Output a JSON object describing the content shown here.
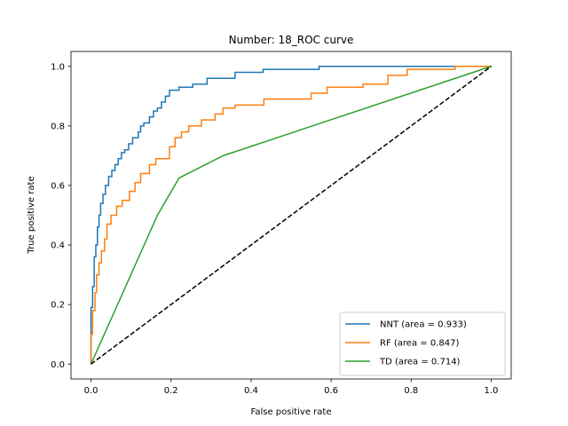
{
  "chart_data": {
    "type": "line",
    "title": "Number: 18_ROC curve",
    "xlabel": "False positive rate",
    "ylabel": "True positive rate",
    "xlim": [
      -0.05,
      1.05
    ],
    "ylim": [
      -0.05,
      1.05
    ],
    "xticks": [
      0.0,
      0.2,
      0.4,
      0.6,
      0.8,
      1.0
    ],
    "yticks": [
      0.0,
      0.2,
      0.4,
      0.6,
      0.8,
      1.0
    ],
    "xtick_labels": [
      "0.0",
      "0.2",
      "0.4",
      "0.6",
      "0.8",
      "1.0"
    ],
    "ytick_labels": [
      "0.0",
      "0.2",
      "0.4",
      "0.6",
      "0.8",
      "1.0"
    ],
    "grid": false,
    "legend_position": "lower-right",
    "series": [
      {
        "name": "NNT (area = 0.933)",
        "color": "#1f77b4",
        "step": true,
        "points": [
          [
            0.0,
            0.0
          ],
          [
            0.0,
            0.19
          ],
          [
            0.004,
            0.19
          ],
          [
            0.004,
            0.26
          ],
          [
            0.008,
            0.26
          ],
          [
            0.008,
            0.36
          ],
          [
            0.012,
            0.36
          ],
          [
            0.012,
            0.4
          ],
          [
            0.016,
            0.4
          ],
          [
            0.016,
            0.46
          ],
          [
            0.02,
            0.46
          ],
          [
            0.02,
            0.5
          ],
          [
            0.024,
            0.5
          ],
          [
            0.024,
            0.54
          ],
          [
            0.03,
            0.54
          ],
          [
            0.03,
            0.57
          ],
          [
            0.036,
            0.57
          ],
          [
            0.036,
            0.6
          ],
          [
            0.044,
            0.6
          ],
          [
            0.044,
            0.63
          ],
          [
            0.052,
            0.63
          ],
          [
            0.052,
            0.65
          ],
          [
            0.06,
            0.65
          ],
          [
            0.06,
            0.67
          ],
          [
            0.068,
            0.67
          ],
          [
            0.068,
            0.69
          ],
          [
            0.076,
            0.69
          ],
          [
            0.076,
            0.71
          ],
          [
            0.084,
            0.71
          ],
          [
            0.084,
            0.72
          ],
          [
            0.094,
            0.72
          ],
          [
            0.094,
            0.74
          ],
          [
            0.104,
            0.74
          ],
          [
            0.104,
            0.76
          ],
          [
            0.118,
            0.76
          ],
          [
            0.118,
            0.78
          ],
          [
            0.124,
            0.78
          ],
          [
            0.124,
            0.8
          ],
          [
            0.132,
            0.8
          ],
          [
            0.132,
            0.81
          ],
          [
            0.146,
            0.81
          ],
          [
            0.146,
            0.83
          ],
          [
            0.156,
            0.83
          ],
          [
            0.156,
            0.85
          ],
          [
            0.166,
            0.85
          ],
          [
            0.166,
            0.86
          ],
          [
            0.176,
            0.86
          ],
          [
            0.176,
            0.88
          ],
          [
            0.186,
            0.88
          ],
          [
            0.186,
            0.9
          ],
          [
            0.196,
            0.9
          ],
          [
            0.196,
            0.92
          ],
          [
            0.22,
            0.92
          ],
          [
            0.22,
            0.93
          ],
          [
            0.254,
            0.93
          ],
          [
            0.254,
            0.94
          ],
          [
            0.29,
            0.94
          ],
          [
            0.29,
            0.96
          ],
          [
            0.36,
            0.96
          ],
          [
            0.36,
            0.98
          ],
          [
            0.43,
            0.98
          ],
          [
            0.43,
            0.99
          ],
          [
            0.57,
            0.99
          ],
          [
            0.57,
            1.0
          ],
          [
            1.0,
            1.0
          ]
        ]
      },
      {
        "name": "RF (area = 0.847)",
        "color": "#ff7f0e",
        "step": true,
        "points": [
          [
            0.0,
            0.0
          ],
          [
            0.0,
            0.1
          ],
          [
            0.004,
            0.1
          ],
          [
            0.004,
            0.18
          ],
          [
            0.01,
            0.18
          ],
          [
            0.01,
            0.24
          ],
          [
            0.014,
            0.24
          ],
          [
            0.014,
            0.3
          ],
          [
            0.02,
            0.3
          ],
          [
            0.02,
            0.34
          ],
          [
            0.026,
            0.34
          ],
          [
            0.026,
            0.38
          ],
          [
            0.034,
            0.38
          ],
          [
            0.034,
            0.42
          ],
          [
            0.04,
            0.42
          ],
          [
            0.04,
            0.47
          ],
          [
            0.05,
            0.47
          ],
          [
            0.05,
            0.5
          ],
          [
            0.064,
            0.5
          ],
          [
            0.064,
            0.53
          ],
          [
            0.078,
            0.53
          ],
          [
            0.078,
            0.55
          ],
          [
            0.096,
            0.55
          ],
          [
            0.096,
            0.58
          ],
          [
            0.11,
            0.58
          ],
          [
            0.11,
            0.61
          ],
          [
            0.124,
            0.61
          ],
          [
            0.124,
            0.64
          ],
          [
            0.146,
            0.64
          ],
          [
            0.146,
            0.67
          ],
          [
            0.162,
            0.67
          ],
          [
            0.162,
            0.69
          ],
          [
            0.196,
            0.69
          ],
          [
            0.196,
            0.73
          ],
          [
            0.21,
            0.73
          ],
          [
            0.21,
            0.76
          ],
          [
            0.226,
            0.76
          ],
          [
            0.226,
            0.78
          ],
          [
            0.244,
            0.78
          ],
          [
            0.244,
            0.8
          ],
          [
            0.276,
            0.8
          ],
          [
            0.276,
            0.82
          ],
          [
            0.31,
            0.82
          ],
          [
            0.31,
            0.84
          ],
          [
            0.33,
            0.84
          ],
          [
            0.33,
            0.86
          ],
          [
            0.36,
            0.86
          ],
          [
            0.36,
            0.87
          ],
          [
            0.432,
            0.87
          ],
          [
            0.432,
            0.89
          ],
          [
            0.55,
            0.89
          ],
          [
            0.55,
            0.91
          ],
          [
            0.59,
            0.91
          ],
          [
            0.59,
            0.93
          ],
          [
            0.68,
            0.93
          ],
          [
            0.68,
            0.94
          ],
          [
            0.742,
            0.94
          ],
          [
            0.742,
            0.97
          ],
          [
            0.79,
            0.97
          ],
          [
            0.79,
            0.99
          ],
          [
            0.91,
            0.99
          ],
          [
            0.91,
            1.0
          ],
          [
            1.0,
            1.0
          ]
        ]
      },
      {
        "name": "TD (area = 0.714)",
        "color": "#2ca02c",
        "step": false,
        "points": [
          [
            0.0,
            0.0
          ],
          [
            0.166,
            0.5
          ],
          [
            0.22,
            0.625
          ],
          [
            0.33,
            0.7
          ],
          [
            1.0,
            1.0
          ]
        ]
      },
      {
        "name": "",
        "color": "#000000",
        "dashed": true,
        "points": [
          [
            0.0,
            0.0
          ],
          [
            1.0,
            1.0
          ]
        ]
      }
    ]
  }
}
